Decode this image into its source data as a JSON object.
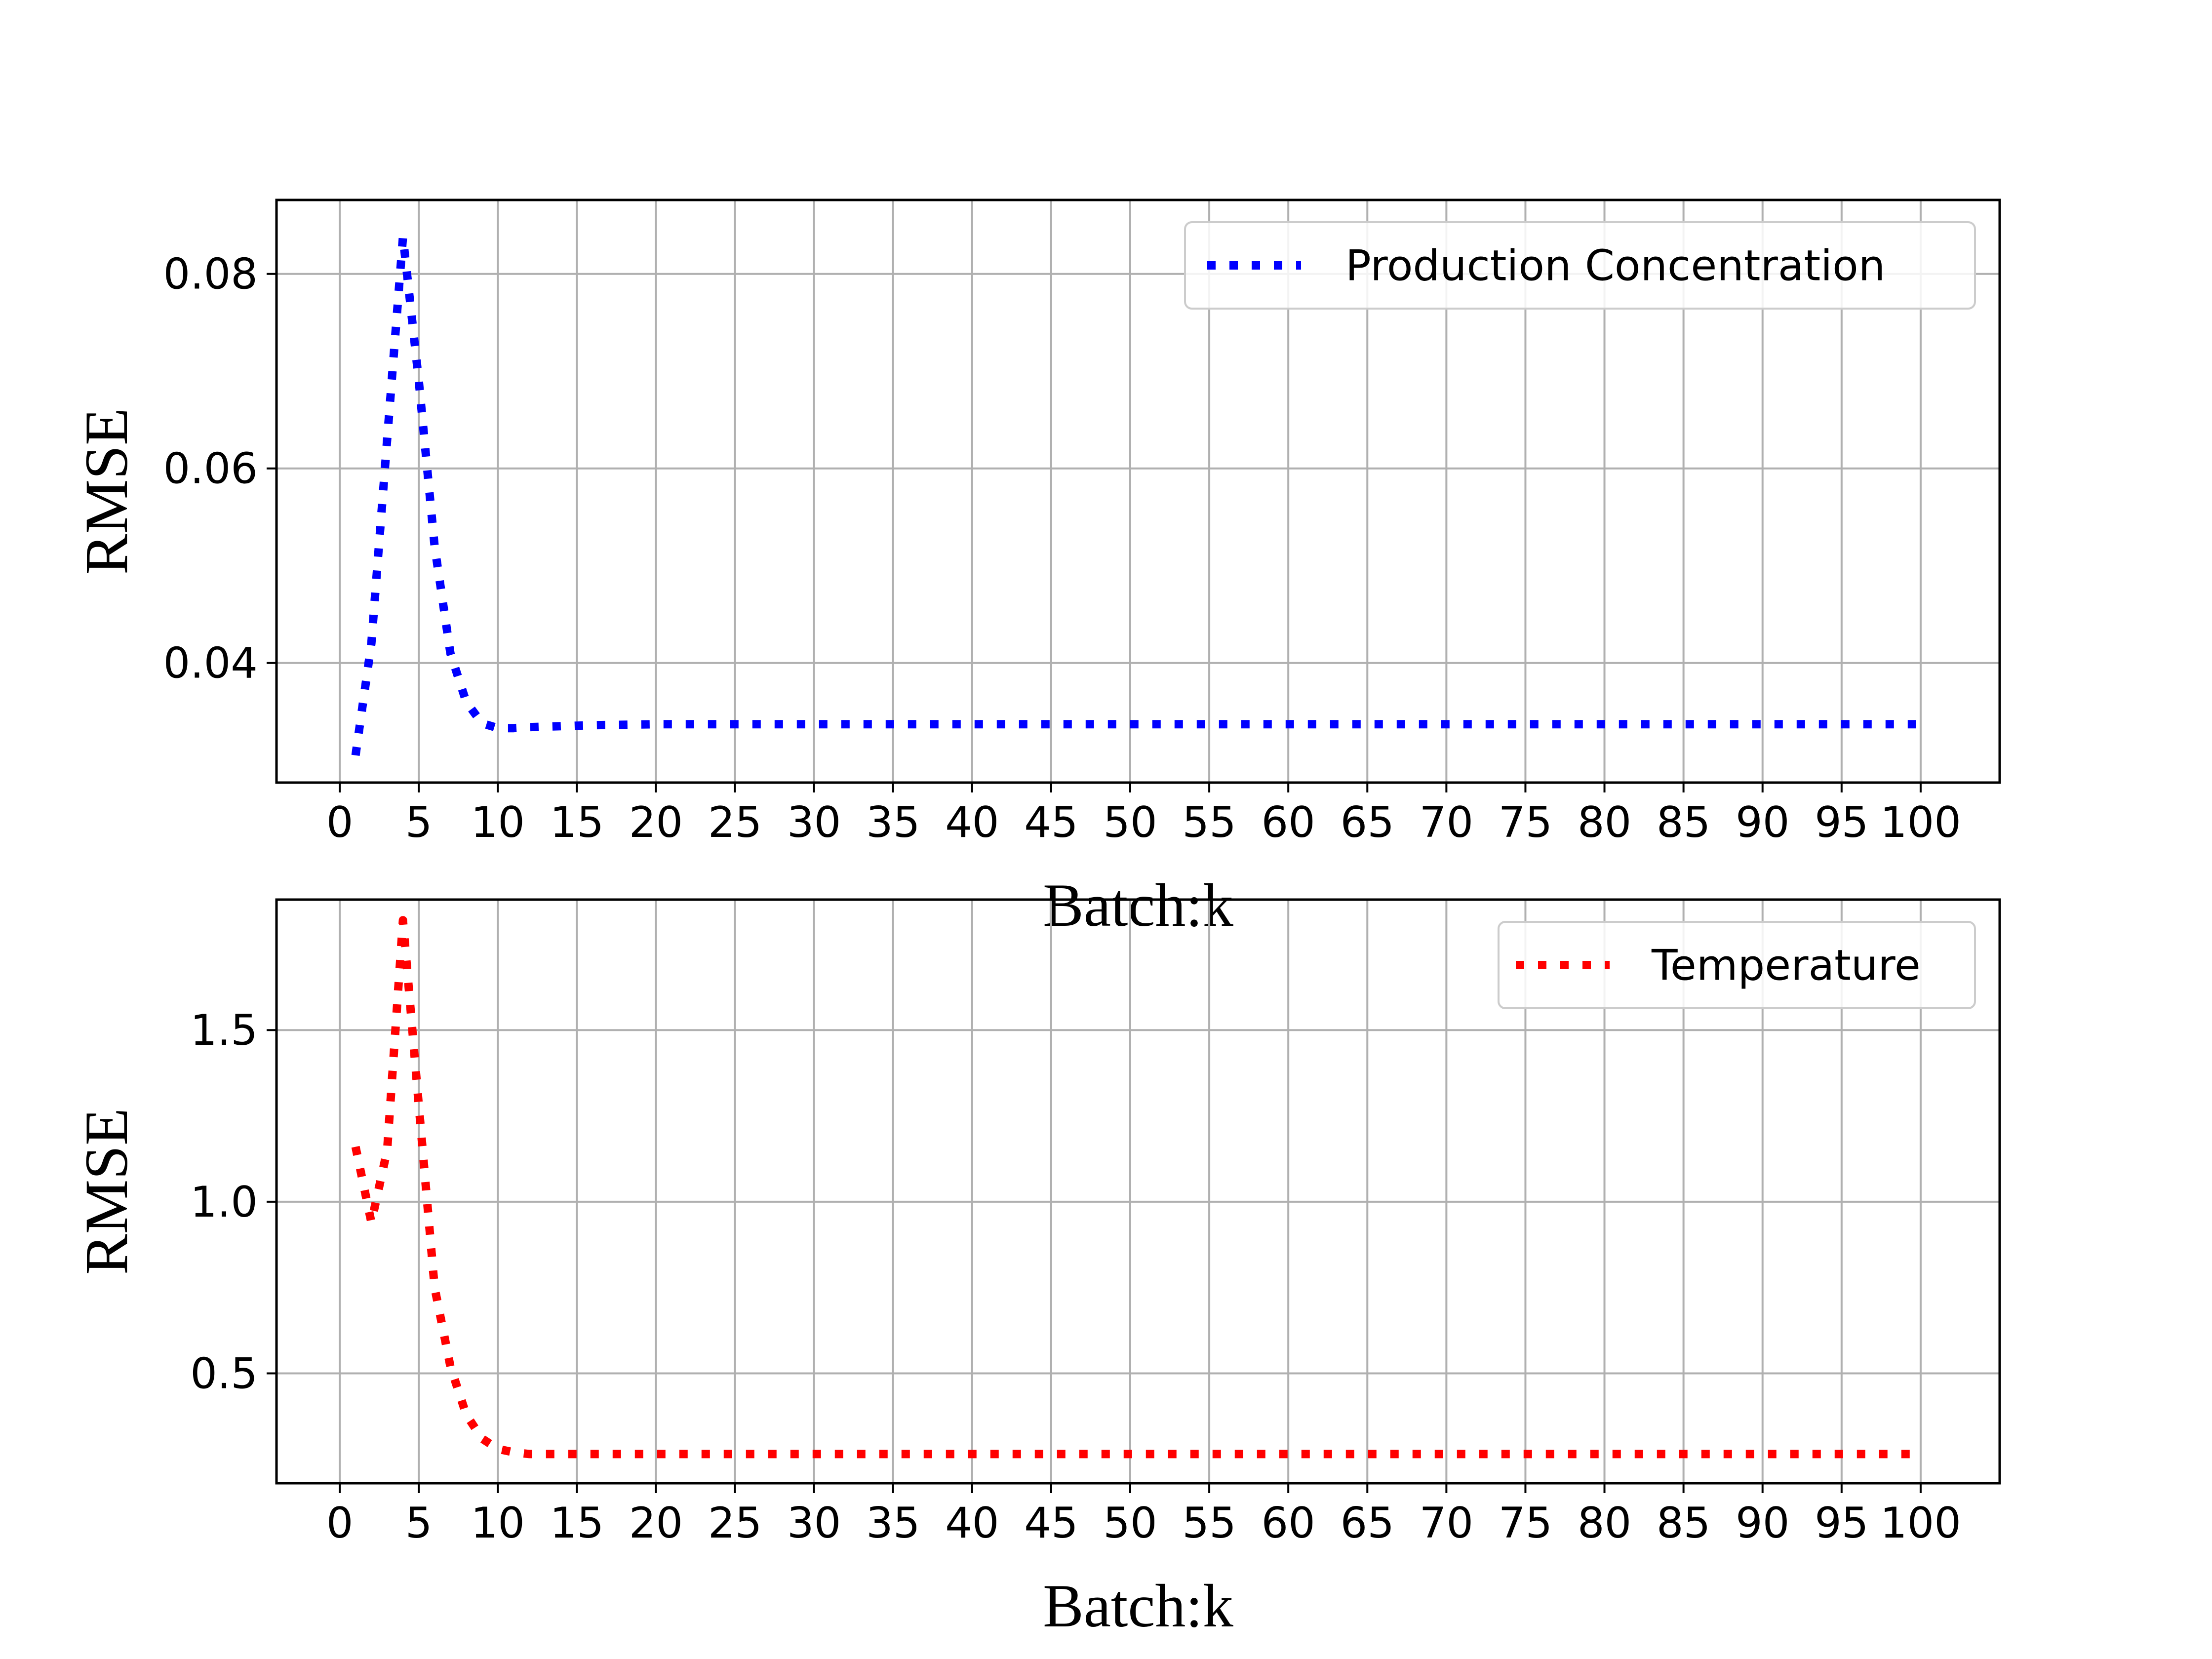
{
  "chart_data": [
    {
      "type": "line",
      "xlabel": "Batch:k",
      "ylabel": "RMSE",
      "xlim": [
        -4,
        105
      ],
      "ylim": [
        0.0277,
        0.0876
      ],
      "xticks": [
        0,
        5,
        10,
        15,
        20,
        25,
        30,
        35,
        40,
        45,
        50,
        55,
        60,
        65,
        70,
        75,
        80,
        85,
        90,
        95,
        100
      ],
      "xtick_labels": [
        "0",
        "5",
        "10",
        "15",
        "20",
        "25",
        "30",
        "35",
        "40",
        "45",
        "50",
        "55",
        "60",
        "65",
        "70",
        "75",
        "80",
        "85",
        "90",
        "95",
        "100"
      ],
      "yticks": [
        0.04,
        0.06,
        0.08
      ],
      "ytick_labels": [
        "0.04",
        "0.06",
        "0.08"
      ],
      "grid": true,
      "legend_position": "upper-right",
      "series": [
        {
          "name": "Production Concentration",
          "color": "#0000ff",
          "line_style": "dotted",
          "x": [
            1,
            2,
            3,
            4,
            5,
            6,
            7,
            8,
            9,
            10,
            11,
            12,
            14,
            16,
            20,
            30,
            40,
            50,
            60,
            70,
            80,
            90,
            100
          ],
          "y": [
            0.0305,
            0.042,
            0.063,
            0.0838,
            0.069,
            0.052,
            0.041,
            0.036,
            0.0338,
            0.0333,
            0.0333,
            0.0334,
            0.0335,
            0.0336,
            0.0337,
            0.0337,
            0.0337,
            0.0337,
            0.0337,
            0.0337,
            0.0337,
            0.0337,
            0.0337
          ]
        }
      ]
    },
    {
      "type": "line",
      "xlabel": "Batch:k",
      "ylabel": "RMSE",
      "xlim": [
        -4,
        105
      ],
      "ylim": [
        0.18,
        1.88
      ],
      "xticks": [
        0,
        5,
        10,
        15,
        20,
        25,
        30,
        35,
        40,
        45,
        50,
        55,
        60,
        65,
        70,
        75,
        80,
        85,
        90,
        95,
        100
      ],
      "xtick_labels": [
        "0",
        "5",
        "10",
        "15",
        "20",
        "25",
        "30",
        "35",
        "40",
        "45",
        "50",
        "55",
        "60",
        "65",
        "70",
        "75",
        "80",
        "85",
        "90",
        "95",
        "100"
      ],
      "yticks": [
        0.5,
        1.0,
        1.5
      ],
      "ytick_labels": [
        "0.5",
        "1.0",
        "1.5"
      ],
      "grid": true,
      "legend_position": "upper-right",
      "series": [
        {
          "name": "Temperature",
          "color": "#ff0000",
          "line_style": "dotted",
          "x": [
            1,
            2,
            3,
            4,
            5,
            6,
            7,
            8,
            9,
            10,
            11,
            12,
            14,
            16,
            20,
            30,
            40,
            50,
            60,
            70,
            80,
            90,
            100
          ],
          "y": [
            1.16,
            0.94,
            1.15,
            1.82,
            1.28,
            0.75,
            0.52,
            0.38,
            0.31,
            0.28,
            0.27,
            0.265,
            0.265,
            0.265,
            0.265,
            0.265,
            0.265,
            0.265,
            0.265,
            0.265,
            0.265,
            0.265,
            0.265
          ]
        }
      ]
    }
  ]
}
